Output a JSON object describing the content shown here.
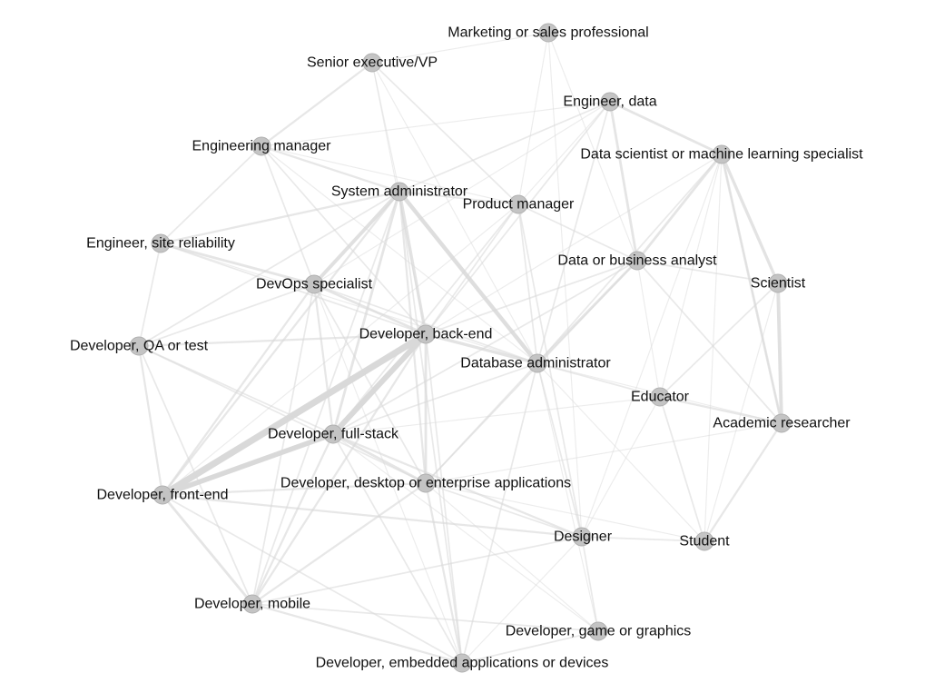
{
  "graph": {
    "nodes": [
      {
        "id": "marketing",
        "label": "Marketing or sales professional"
      },
      {
        "id": "exec",
        "label": "Senior executive/VP"
      },
      {
        "id": "eng_data",
        "label": "Engineer, data"
      },
      {
        "id": "eng_mgr",
        "label": "Engineering manager"
      },
      {
        "id": "data_sci",
        "label": "Data scientist or machine learning specialist"
      },
      {
        "id": "sysadmin",
        "label": "System administrator"
      },
      {
        "id": "pm",
        "label": "Product manager"
      },
      {
        "id": "sre",
        "label": "Engineer, site reliability"
      },
      {
        "id": "analyst",
        "label": "Data or business analyst"
      },
      {
        "id": "devops",
        "label": "DevOps specialist"
      },
      {
        "id": "scientist",
        "label": "Scientist"
      },
      {
        "id": "backend",
        "label": "Developer, back-end"
      },
      {
        "id": "qa",
        "label": "Developer, QA or test"
      },
      {
        "id": "dba",
        "label": "Database administrator"
      },
      {
        "id": "educator",
        "label": "Educator"
      },
      {
        "id": "academic",
        "label": "Academic researcher"
      },
      {
        "id": "fullstack",
        "label": "Developer, full-stack"
      },
      {
        "id": "desktop",
        "label": "Developer, desktop or enterprise applications"
      },
      {
        "id": "frontend",
        "label": "Developer, front-end"
      },
      {
        "id": "designer",
        "label": "Designer"
      },
      {
        "id": "student",
        "label": "Student"
      },
      {
        "id": "mobile",
        "label": "Developer, mobile"
      },
      {
        "id": "game",
        "label": "Developer, game or graphics"
      },
      {
        "id": "embedded",
        "label": "Developer, embedded applications or devices"
      }
    ],
    "edges": [
      [
        "backend",
        "frontend",
        12
      ],
      [
        "backend",
        "fullstack",
        10
      ],
      [
        "fullstack",
        "frontend",
        9
      ],
      [
        "sysadmin",
        "dba",
        7
      ],
      [
        "sysadmin",
        "devops",
        6
      ],
      [
        "sysadmin",
        "backend",
        5
      ],
      [
        "devops",
        "backend",
        4
      ],
      [
        "sysadmin",
        "fullstack",
        4
      ],
      [
        "backend",
        "desktop",
        4
      ],
      [
        "backend",
        "dba",
        5
      ],
      [
        "fullstack",
        "desktop",
        4
      ],
      [
        "frontend",
        "mobile",
        4
      ],
      [
        "frontend",
        "desktop",
        3
      ],
      [
        "mobile",
        "desktop",
        3
      ],
      [
        "fullstack",
        "mobile",
        3
      ],
      [
        "backend",
        "mobile",
        3
      ],
      [
        "scientist",
        "academic",
        6
      ],
      [
        "data_sci",
        "scientist",
        5
      ],
      [
        "data_sci",
        "academic",
        4
      ],
      [
        "eng_data",
        "data_sci",
        4
      ],
      [
        "eng_data",
        "analyst",
        4
      ],
      [
        "analyst",
        "data_sci",
        4
      ],
      [
        "analyst",
        "dba",
        4
      ],
      [
        "fullstack",
        "designer",
        3
      ],
      [
        "frontend",
        "designer",
        3
      ],
      [
        "desktop",
        "designer",
        2
      ],
      [
        "mobile",
        "embedded",
        3
      ],
      [
        "desktop",
        "embedded",
        3
      ],
      [
        "dba",
        "desktop",
        2
      ],
      [
        "fullstack",
        "dba",
        2
      ],
      [
        "sre",
        "devops",
        4
      ],
      [
        "sre",
        "sysadmin",
        3
      ],
      [
        "eng_mgr",
        "sysadmin",
        3
      ],
      [
        "exec",
        "eng_mgr",
        3
      ],
      [
        "exec",
        "pm",
        2
      ],
      [
        "educator",
        "academic",
        3
      ],
      [
        "educator",
        "student",
        2
      ],
      [
        "academic",
        "student",
        3
      ],
      [
        "student",
        "designer",
        2
      ],
      [
        "designer",
        "game",
        2
      ],
      [
        "game",
        "embedded",
        2
      ],
      [
        "mobile",
        "game",
        2
      ],
      [
        "qa",
        "backend",
        3
      ],
      [
        "qa",
        "devops",
        2
      ],
      [
        "qa",
        "frontend",
        3
      ],
      [
        "qa",
        "fullstack",
        2
      ],
      [
        "qa",
        "sre",
        2
      ],
      [
        "devops",
        "fullstack",
        3
      ],
      [
        "devops",
        "frontend",
        3
      ],
      [
        "devops",
        "dba",
        2
      ],
      [
        "eng_data",
        "dba",
        2
      ],
      [
        "eng_data",
        "sysadmin",
        2
      ],
      [
        "pm",
        "dba",
        2
      ],
      [
        "pm",
        "designer",
        2
      ],
      [
        "pm",
        "backend",
        2
      ],
      [
        "sysadmin",
        "desktop",
        3
      ],
      [
        "sysadmin",
        "frontend",
        3
      ],
      [
        "sysadmin",
        "mobile",
        2
      ],
      [
        "sysadmin",
        "embedded",
        2
      ],
      [
        "dba",
        "designer",
        2
      ],
      [
        "analyst",
        "fullstack",
        2
      ],
      [
        "analyst",
        "backend",
        2
      ],
      [
        "scientist",
        "educator",
        2
      ],
      [
        "educator",
        "dba",
        2
      ],
      [
        "eng_mgr",
        "devops",
        2
      ],
      [
        "eng_mgr",
        "backend",
        2
      ],
      [
        "eng_mgr",
        "sre",
        2
      ],
      [
        "desktop",
        "student",
        1
      ],
      [
        "frontend",
        "embedded",
        2
      ],
      [
        "fullstack",
        "embedded",
        2
      ],
      [
        "backend",
        "embedded",
        2
      ],
      [
        "dba",
        "embedded",
        2
      ],
      [
        "data_sci",
        "dba",
        2
      ],
      [
        "data_sci",
        "backend",
        1
      ],
      [
        "data_sci",
        "educator",
        1
      ],
      [
        "eng_data",
        "backend",
        2
      ],
      [
        "eng_data",
        "eng_mgr",
        1
      ],
      [
        "eng_data",
        "pm",
        1
      ],
      [
        "eng_data",
        "devops",
        1
      ],
      [
        "marketing",
        "analyst",
        1
      ],
      [
        "marketing",
        "pm",
        1
      ],
      [
        "marketing",
        "exec",
        1
      ],
      [
        "marketing",
        "designer",
        1
      ],
      [
        "exec",
        "sysadmin",
        1
      ],
      [
        "exec",
        "dba",
        1
      ],
      [
        "exec",
        "backend",
        1
      ],
      [
        "pm",
        "fullstack",
        2
      ],
      [
        "pm",
        "frontend",
        1
      ],
      [
        "pm",
        "analyst",
        2
      ],
      [
        "analyst",
        "academic",
        2
      ],
      [
        "analyst",
        "scientist",
        2
      ],
      [
        "scientist",
        "student",
        1
      ],
      [
        "educator",
        "designer",
        1
      ],
      [
        "educator",
        "fullstack",
        1
      ],
      [
        "designer",
        "mobile",
        2
      ],
      [
        "designer",
        "embedded",
        1
      ],
      [
        "academic",
        "desktop",
        1
      ],
      [
        "academic",
        "dba",
        1
      ],
      [
        "game",
        "desktop",
        1
      ],
      [
        "game",
        "fullstack",
        1
      ],
      [
        "qa",
        "mobile",
        2
      ],
      [
        "qa",
        "desktop",
        2
      ],
      [
        "qa",
        "sysadmin",
        2
      ],
      [
        "sre",
        "backend",
        2
      ],
      [
        "sre",
        "dba",
        1
      ],
      [
        "devops",
        "mobile",
        2
      ],
      [
        "devops",
        "desktop",
        2
      ],
      [
        "devops",
        "embedded",
        1
      ],
      [
        "sysadmin",
        "pm",
        2
      ],
      [
        "eng_mgr",
        "pm",
        1
      ],
      [
        "eng_mgr",
        "dba",
        1
      ],
      [
        "analyst",
        "desktop",
        2
      ],
      [
        "analyst",
        "educator",
        1
      ],
      [
        "data_sci",
        "academic",
        1
      ],
      [
        "data_sci",
        "student",
        1
      ],
      [
        "data_sci",
        "designer",
        1
      ],
      [
        "dba",
        "student",
        1
      ],
      [
        "dba",
        "game",
        1
      ]
    ]
  }
}
